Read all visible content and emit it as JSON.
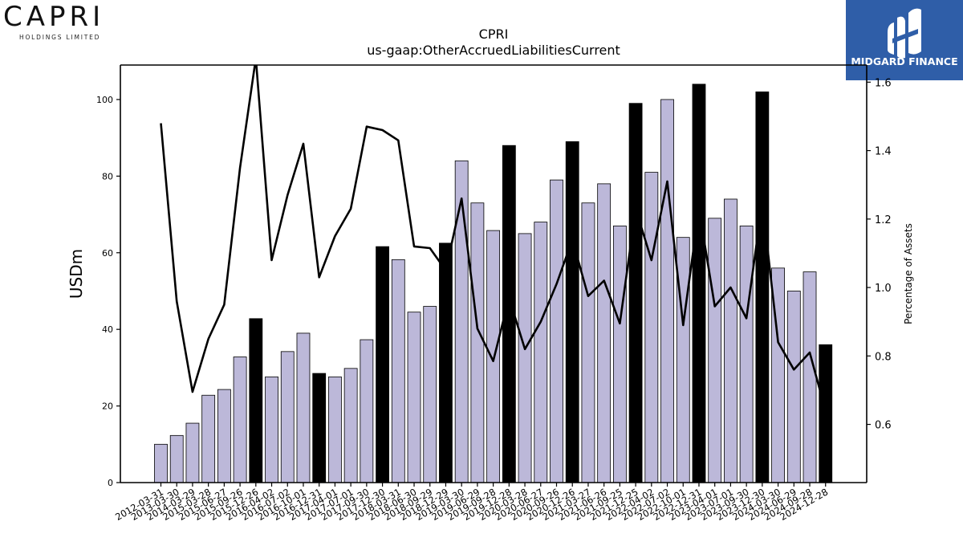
{
  "logos": {
    "left_word": "CAPRI",
    "left_sub": "HOLDINGS LIMITED",
    "right_text": "MIDGARD FINANCE"
  },
  "chart_data": {
    "type": "bar",
    "title": "CPRI",
    "subtitle": "us-gaap:OtherAccruedLiabilitiesCurrent",
    "ylabel": "USDm",
    "y2label": "Percentage of Assets",
    "ylim": [
      0,
      109
    ],
    "y2lim": [
      0.43,
      1.65
    ],
    "yticks": [
      0,
      20,
      40,
      60,
      80,
      100
    ],
    "y2ticks": [
      0.6,
      0.8,
      1.0,
      1.2,
      1.4,
      1.6
    ],
    "categories": [
      "2012-03-31",
      "2013-03-30",
      "2014-03-29",
      "2015-03-28",
      "2015-06-27",
      "2015-09-26",
      "2015-12-26",
      "2016-04-02",
      "2016-07-02",
      "2016-10-01",
      "2016-12-31",
      "2017-04-01",
      "2017-07-01",
      "2017-09-30",
      "2017-12-30",
      "2018-03-31",
      "2018-06-30",
      "2018-09-29",
      "2018-12-29",
      "2019-03-30",
      "2019-06-29",
      "2019-09-28",
      "2019-12-28",
      "2020-03-28",
      "2020-06-27",
      "2020-09-26",
      "2020-12-26",
      "2021-03-27",
      "2021-06-26",
      "2021-09-25",
      "2021-12-25",
      "2022-04-02",
      "2022-07-02",
      "2022-10-01",
      "2022-12-31",
      "2023-04-01",
      "2023-07-01",
      "2023-09-30",
      "2023-12-30",
      "2024-03-30",
      "2024-06-29",
      "2024-09-28",
      "2024-12-28"
    ],
    "series": [
      {
        "type": "bar",
        "values": [
          10,
          12.3,
          15.5,
          22.8,
          24.3,
          32.8,
          42.8,
          27.6,
          34.2,
          39,
          28.5,
          27.6,
          29.8,
          37.3,
          61.6,
          58.2,
          44.5,
          46,
          62.5,
          84,
          73,
          65.8,
          88,
          65,
          68,
          79,
          89,
          73,
          78,
          67,
          99,
          81,
          100,
          64,
          104,
          69,
          74,
          67,
          102,
          56,
          50,
          55,
          36
        ],
        "highlight": [
          false,
          false,
          false,
          false,
          false,
          false,
          true,
          false,
          false,
          false,
          true,
          false,
          false,
          false,
          true,
          false,
          false,
          false,
          true,
          false,
          false,
          false,
          true,
          false,
          false,
          false,
          true,
          false,
          false,
          false,
          true,
          false,
          false,
          false,
          true,
          false,
          false,
          false,
          true,
          false,
          false,
          false,
          true
        ],
        "color": "#bcb8d9",
        "highlight_color": "#000000"
      },
      {
        "type": "line",
        "axis": "right",
        "values": [
          1.48,
          0.96,
          0.695,
          0.85,
          0.95,
          1.35,
          1.67,
          1.08,
          1.27,
          1.42,
          1.03,
          1.15,
          1.23,
          1.47,
          1.46,
          1.43,
          1.12,
          1.115,
          1.05,
          1.26,
          0.88,
          0.785,
          0.97,
          0.82,
          0.9,
          1.01,
          1.14,
          0.975,
          1.02,
          0.895,
          1.23,
          1.08,
          1.31,
          0.89,
          1.23,
          0.945,
          1.0,
          0.91,
          1.25,
          0.84,
          0.76,
          0.81,
          0.64
        ],
        "color": "#000000"
      }
    ]
  }
}
